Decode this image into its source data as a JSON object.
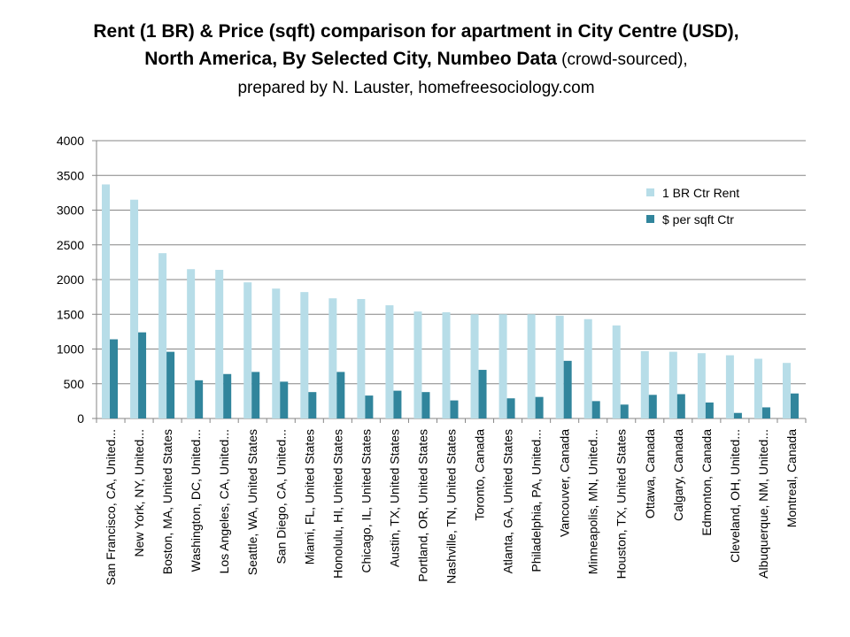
{
  "chart_data": {
    "type": "bar",
    "title_line1": "Rent (1 BR) & Price (sqft) comparison for apartment in City Centre (USD),",
    "title_line2_bold": "North America, By Selected City, Numbeo Data",
    "title_line2_normal": " (crowd-sourced),",
    "title_line3": "prepared by N. Lauster, homefreesociology.com",
    "ylim": [
      0,
      4000
    ],
    "yticks": [
      "0",
      "500",
      "1000",
      "1500",
      "2000",
      "2500",
      "3000",
      "3500",
      "4000"
    ],
    "grid": true,
    "legend_position": "top-right",
    "categories": [
      "San Francisco, CA, United...",
      "New York, NY, United...",
      "Boston, MA, United States",
      "Washington, DC, United...",
      "Los Angeles, CA, United...",
      "Seattle, WA, United States",
      "San Diego, CA, United...",
      "Miami, FL, United States",
      "Honolulu, HI, United States",
      "Chicago, IL, United States",
      "Austin, TX, United States",
      "Portland, OR, United States",
      "Nashville, TN, United States",
      "Toronto, Canada",
      "Atlanta, GA, United States",
      "Philadelphia, PA, United...",
      "Vancouver, Canada",
      "Minneapolis, MN, United...",
      "Houston, TX, United States",
      "Ottawa, Canada",
      "Calgary, Canada",
      "Edmonton, Canada",
      "Cleveland, OH, United...",
      "Albuquerque, NM, United...",
      "Montreal, Canada"
    ],
    "series": [
      {
        "name": "1 BR Ctr Rent",
        "color": "#b7dde8",
        "values": [
          3370,
          3150,
          2380,
          2150,
          2140,
          1960,
          1870,
          1820,
          1730,
          1720,
          1630,
          1540,
          1530,
          1500,
          1500,
          1500,
          1480,
          1430,
          1340,
          970,
          960,
          940,
          910,
          860,
          800
        ]
      },
      {
        "name": "$ per sqft Ctr",
        "color": "#31859c",
        "values": [
          1140,
          1240,
          960,
          550,
          640,
          670,
          530,
          380,
          670,
          330,
          400,
          380,
          260,
          700,
          290,
          310,
          830,
          250,
          200,
          340,
          350,
          230,
          80,
          160,
          360
        ]
      }
    ]
  }
}
